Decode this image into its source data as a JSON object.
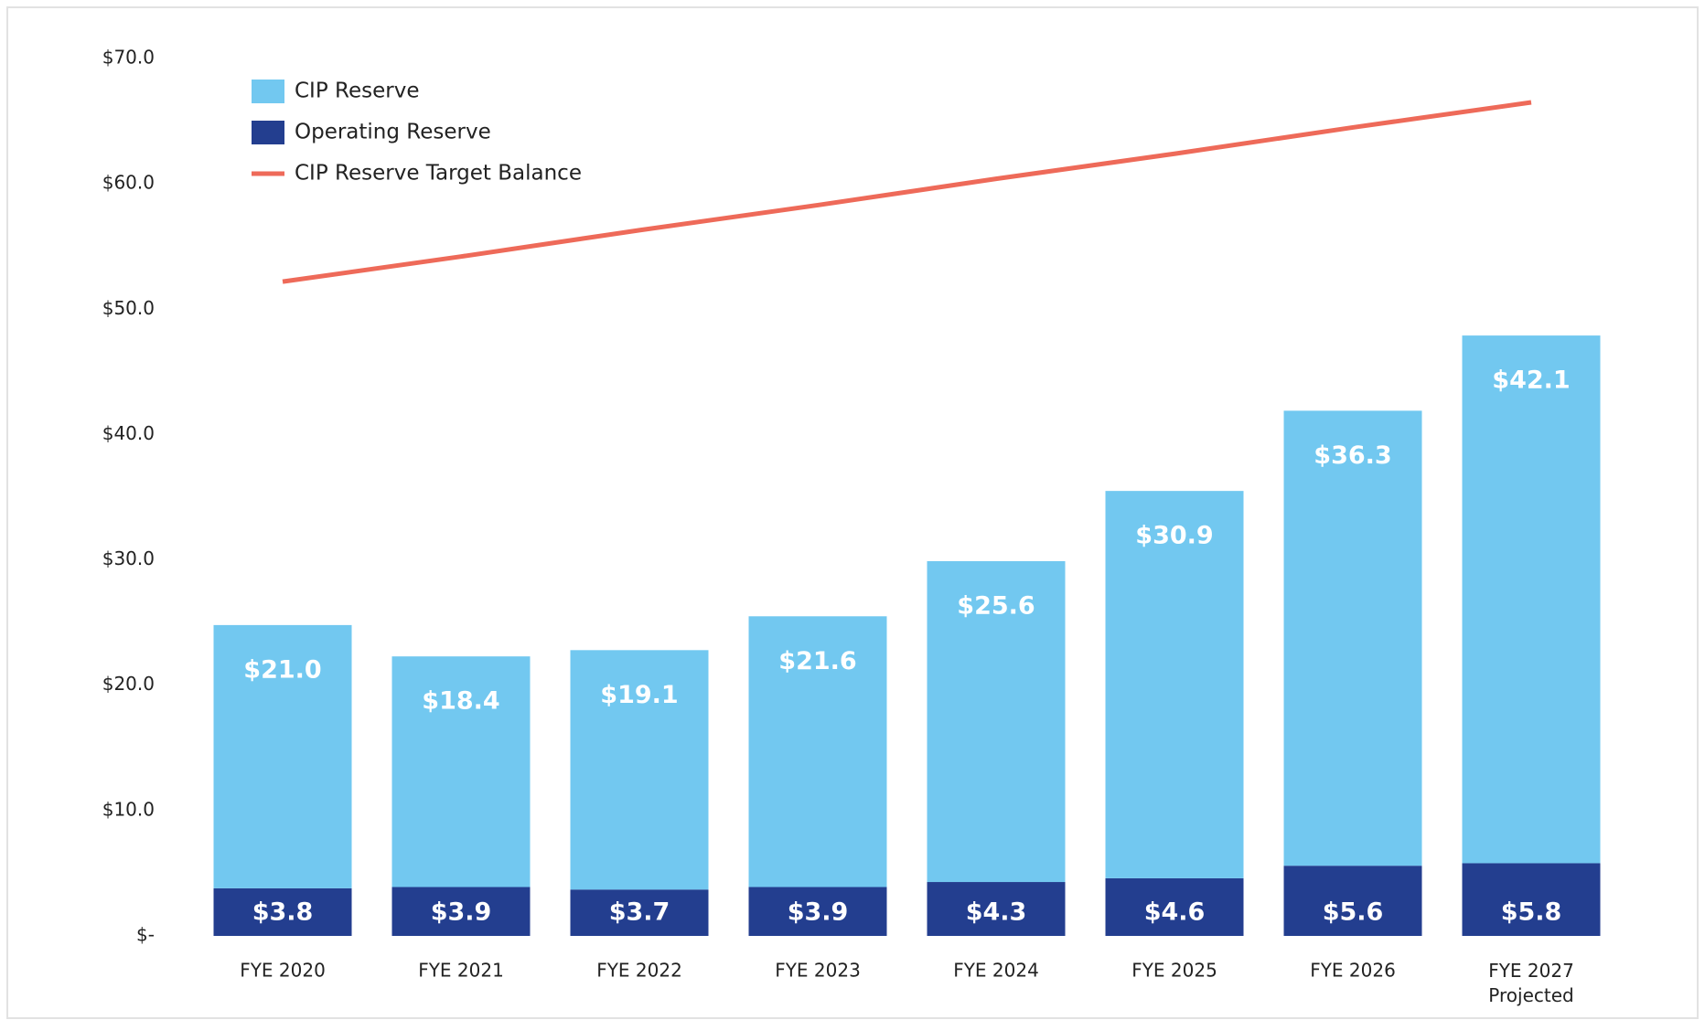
{
  "chart_data": {
    "type": "stacked-bar-line",
    "categories": [
      "FYE 2020",
      "FYE 2021",
      "FYE 2022",
      "FYE 2023",
      "FYE 2024",
      "FYE 2025",
      "FYE 2026",
      "FYE 2027\nProjected"
    ],
    "series": [
      {
        "name": "Operating Reserve",
        "color": "#233e8f",
        "type": "bar",
        "values": [
          3.8,
          3.9,
          3.7,
          3.9,
          4.3,
          4.6,
          5.6,
          5.8
        ],
        "value_labels": [
          "$3.8",
          "$3.9",
          "$3.7",
          "$3.9",
          "$4.3",
          "$4.6",
          "$5.6",
          "$5.8"
        ]
      },
      {
        "name": "CIP Reserve",
        "color": "#72c8f0",
        "type": "bar",
        "values": [
          21.0,
          18.4,
          19.1,
          21.6,
          25.6,
          30.9,
          36.3,
          42.1
        ],
        "value_labels": [
          "$21.0",
          "$18.4",
          "$19.1",
          "$21.6",
          "$25.6",
          "$30.9",
          "$36.3",
          "$42.1"
        ]
      },
      {
        "name": "CIP Reserve Target Balance",
        "color": "#ee6a59",
        "type": "line",
        "values": [
          52.2,
          54.2,
          56.3,
          58.3,
          60.4,
          62.4,
          64.5,
          66.5
        ]
      }
    ],
    "ylim": [
      0,
      70
    ],
    "yticks": [
      {
        "value": 0,
        "label": "$-"
      },
      {
        "value": 10,
        "label": "$10.0"
      },
      {
        "value": 20,
        "label": "$20.0"
      },
      {
        "value": 30,
        "label": "$30.0"
      },
      {
        "value": 40,
        "label": "$40.0"
      },
      {
        "value": 50,
        "label": "$50.0"
      },
      {
        "value": 60,
        "label": "$60.0"
      },
      {
        "value": 70,
        "label": "$70.0"
      }
    ],
    "legend": "top-left",
    "legend_order": [
      1,
      0,
      2
    ]
  }
}
